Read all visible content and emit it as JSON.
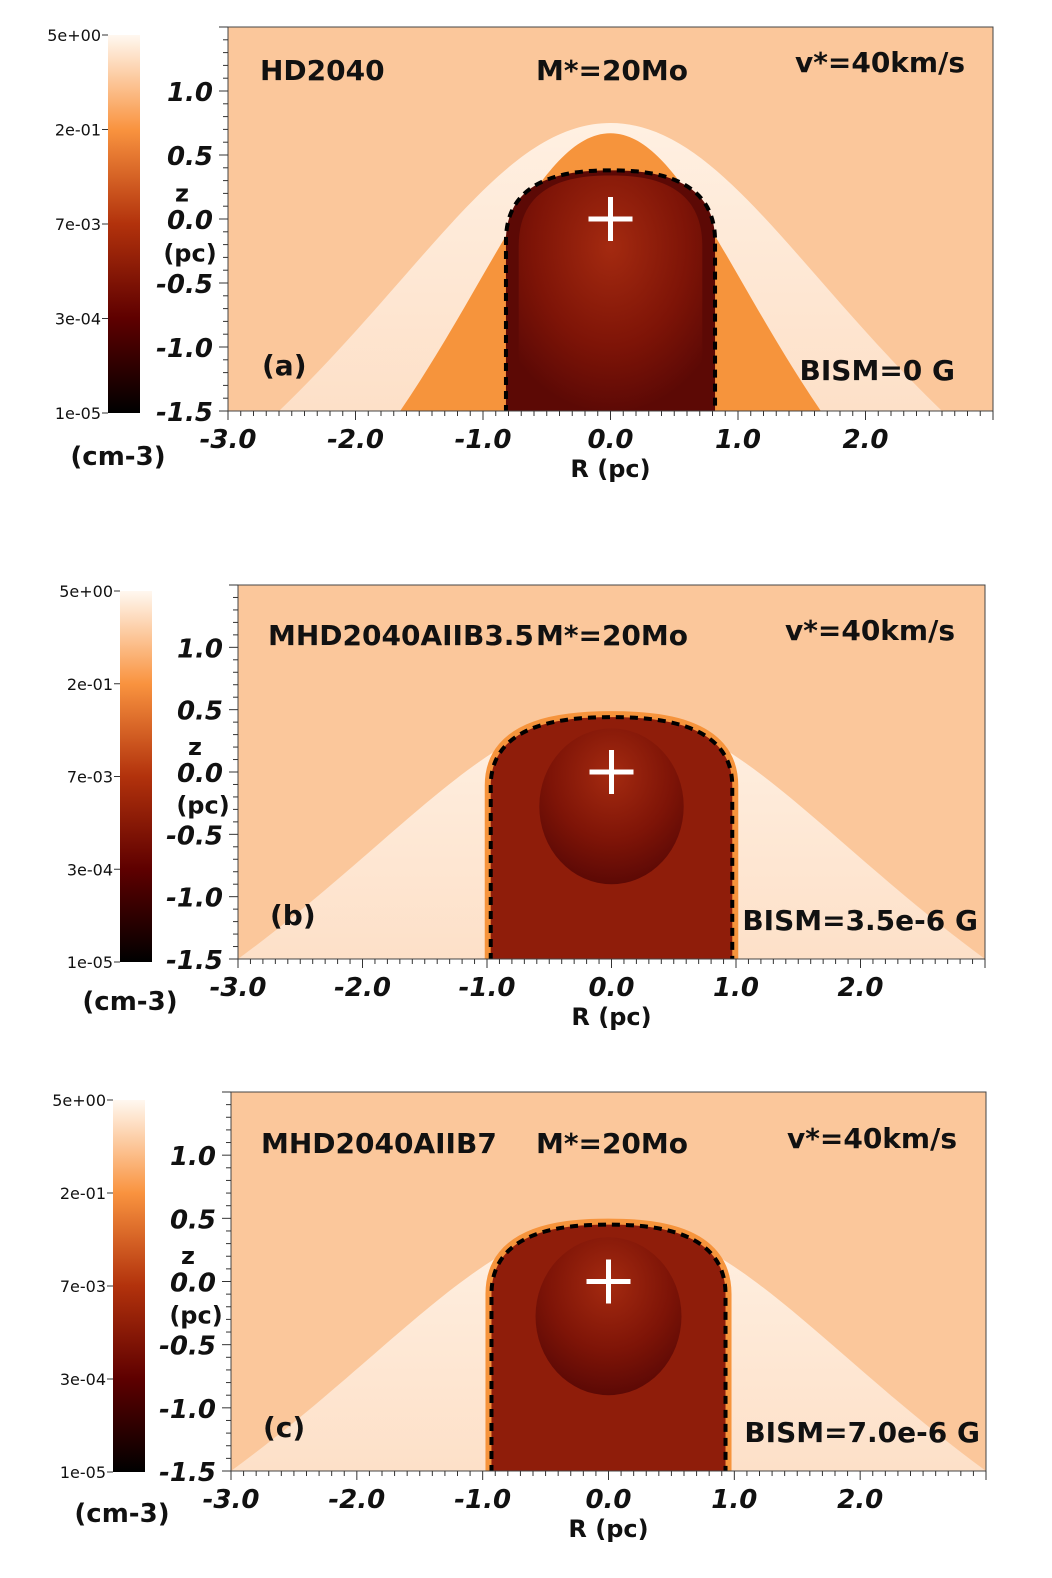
{
  "colorbar": {
    "ticks": [
      "5e+00",
      "2e-01",
      "7e-03",
      "3e-04",
      "1e-05"
    ],
    "unit": "(cm-3)",
    "colors": [
      "#fff8f0",
      "#f9933f",
      "#b2320c",
      "#5e0000",
      "#000000"
    ]
  },
  "colors": {
    "ambient": "#fbc79b",
    "bowshock": "#fff0e2",
    "shell": "#f6943c",
    "wind": "#7e1407",
    "windcore": "#5c0905",
    "cavity_b": "#8f1d0a",
    "contact": "#000000",
    "star_marker": "#ffffff"
  },
  "axes": {
    "xlabel": "R (pc)",
    "ylabel_z": "z",
    "ylabel_unit": "(pc)",
    "xticks": [
      "-3.0",
      "-2.0",
      "-1.0",
      "0.0",
      "1.0",
      "2.0"
    ],
    "yticks": [
      "1.0",
      "0.5",
      "0.0",
      "-0.5",
      "-1.0",
      "-1.5"
    ]
  },
  "chart_data": [
    {
      "type": "heatmap",
      "panel": "(a)",
      "model": "HD2040",
      "mass": "M*=20Mo",
      "velocity": "v*=40km/s",
      "field": "BISM=0 G",
      "xlim": [
        -3.0,
        3.0
      ],
      "ylim": [
        -1.5,
        1.5
      ],
      "star": [
        0.0,
        0.0
      ],
      "log_scale_colorbar": true,
      "bowshock_apex_z": 0.75,
      "bowshock_halfwidth_at_bottom": 2.6,
      "shell_halfwidth_at_bottom": 1.65,
      "contact_apex_z": 0.38,
      "contact_halfwidth_at_bottom": 0.82
    },
    {
      "type": "heatmap",
      "panel": "(b)",
      "model": "MHD2040AIIB3.5",
      "mass": "M*=20Mo",
      "velocity": "v*=40km/s",
      "field": "BISM=3.5e-6 G",
      "xlim": [
        -3.0,
        3.0
      ],
      "ylim": [
        -1.5,
        1.5
      ],
      "star": [
        0.0,
        0.0
      ],
      "log_scale_colorbar": true,
      "bowshock_apex_z": 0.48,
      "bowshock_halfwidth_at_bottom": 3.0,
      "contact_apex_z": 0.44,
      "contact_halfwidth_at_bottom": 0.97
    },
    {
      "type": "heatmap",
      "panel": "(c)",
      "model": "MHD2040AIIB7",
      "mass": "M*=20Mo",
      "velocity": "v*=40km/s",
      "field": "BISM=7.0e-6 G",
      "xlim": [
        -3.0,
        3.0
      ],
      "ylim": [
        -1.5,
        1.5
      ],
      "star": [
        0.0,
        0.0
      ],
      "log_scale_colorbar": true,
      "bowshock_apex_z": 0.47,
      "bowshock_halfwidth_at_bottom": 3.0,
      "contact_apex_z": 0.45,
      "contact_halfwidth_at_bottom": 0.93
    }
  ]
}
